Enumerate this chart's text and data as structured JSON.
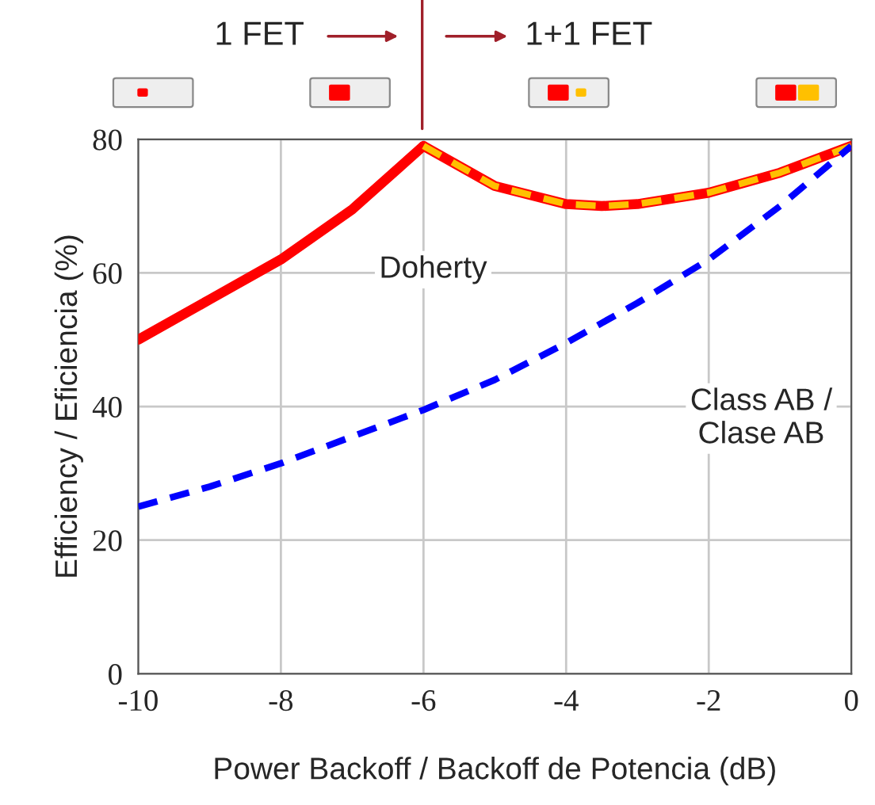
{
  "chart_data": {
    "type": "line",
    "xlabel": "Power Backoff / Backoff de Potencia (dB)",
    "ylabel": "Efficiency / Eficiencia (%)",
    "xlim": [
      -10,
      0
    ],
    "xticks": [
      -10,
      -8,
      -6,
      -4,
      -2,
      0
    ],
    "ylim": [
      0,
      80
    ],
    "yticks": [
      0,
      20,
      40,
      60,
      80
    ],
    "grid": true,
    "marker": "none",
    "series": [
      {
        "color": "#ff0000",
        "line_style": "solid",
        "x": [
          -10,
          -9,
          -8,
          -7,
          -6
        ],
        "values": [
          50,
          56,
          62,
          69.5,
          79
        ]
      },
      {
        "color": "#ff0000",
        "line_style": "solid",
        "x": [
          -6,
          -5,
          -4,
          -3.5,
          -3,
          -2,
          -1,
          0
        ],
        "values": [
          79,
          73,
          70.3,
          70,
          70.3,
          72,
          75,
          79
        ]
      },
      {
        "color": "#ffc000",
        "line_style": "dashed",
        "x": [
          -6,
          -5,
          -4,
          -3.5,
          -3,
          -2,
          -1,
          0
        ],
        "values": [
          79,
          73,
          70.3,
          70,
          70.3,
          72,
          75,
          79
        ]
      },
      {
        "color": "#0000ff",
        "line_style": "dashed",
        "x": [
          -10,
          -9,
          -8,
          -7,
          -6,
          -5,
          -4,
          -3,
          -2,
          -1,
          0
        ],
        "values": [
          25,
          28,
          31.5,
          35.5,
          39.5,
          44,
          49.5,
          55.5,
          62,
          70,
          79
        ]
      }
    ],
    "annotations": [
      "Doherty",
      "Class AB /\nClase AB",
      "1 FET",
      "1+1 FET"
    ]
  }
}
